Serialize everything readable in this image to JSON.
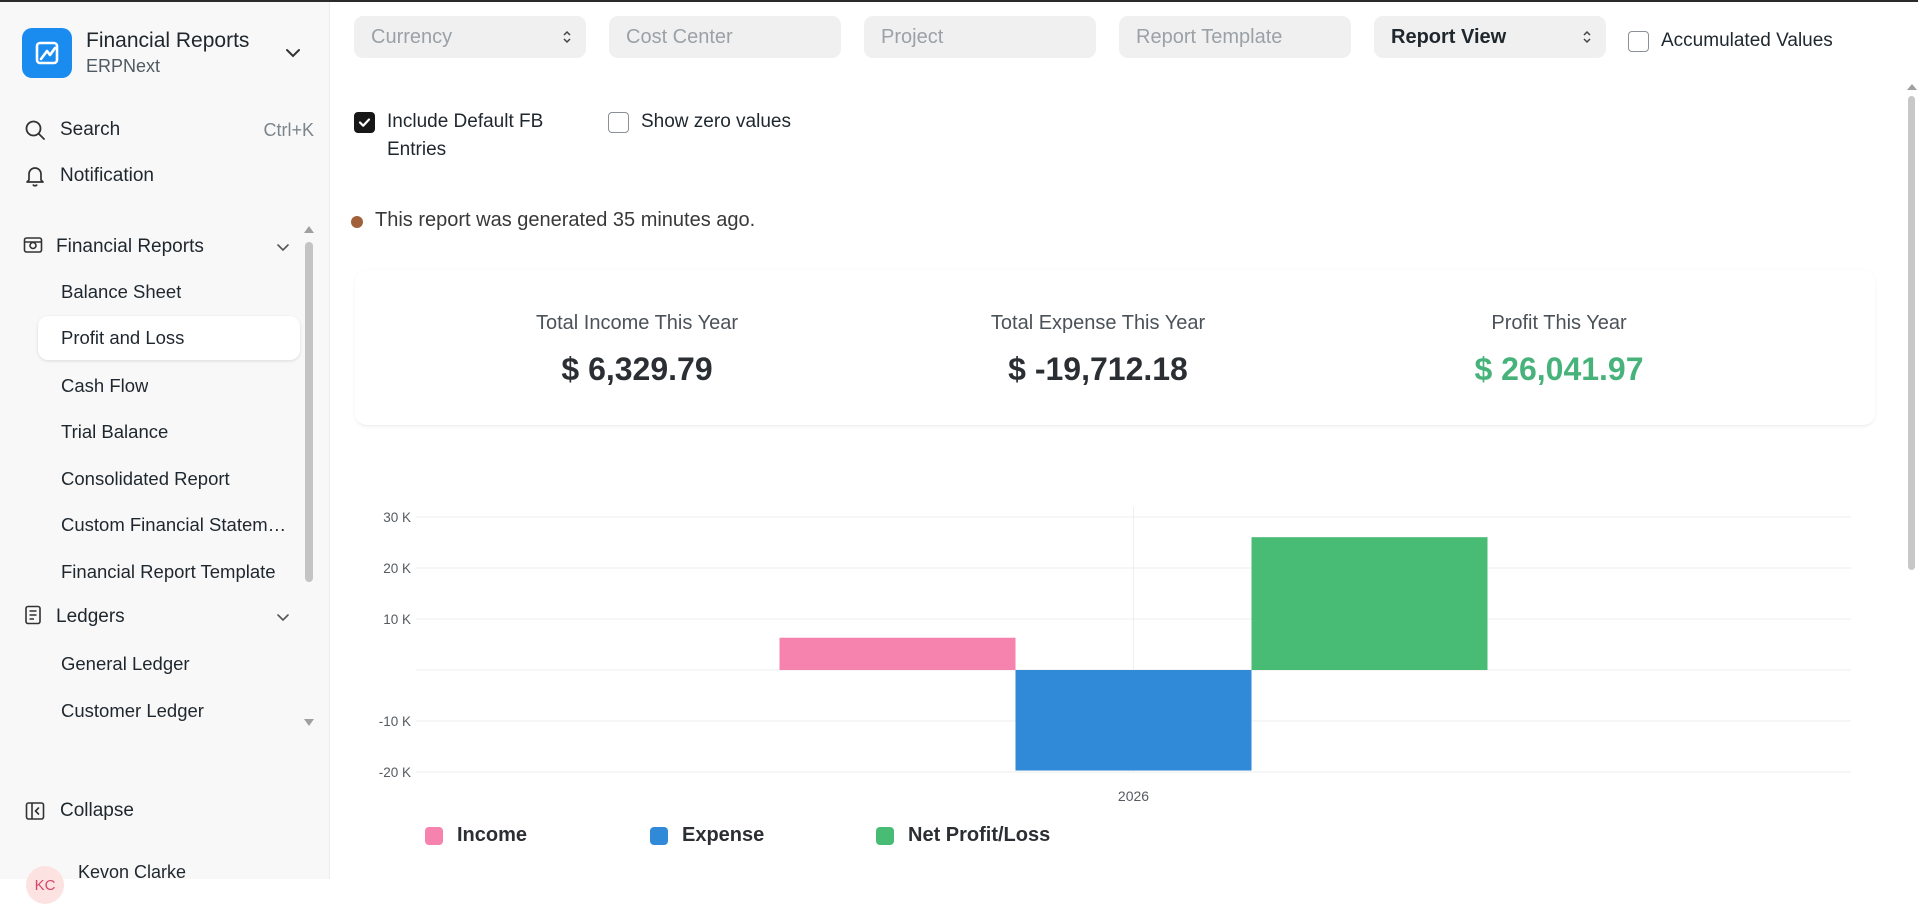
{
  "app": {
    "title": "Financial Reports",
    "subtitle": "ERPNext"
  },
  "sidebar": {
    "search_label": "Search",
    "search_shortcut": "Ctrl+K",
    "notification_label": "Notification",
    "groups": [
      {
        "label": "Financial Reports",
        "items": [
          "Balance Sheet",
          "Profit and Loss",
          "Cash Flow",
          "Trial Balance",
          "Consolidated Report",
          "Custom Financial Statement",
          "Financial Report Template"
        ]
      },
      {
        "label": "Ledgers",
        "items": [
          "General Ledger",
          "Customer Ledger"
        ]
      }
    ],
    "active_item": "Profit and Loss",
    "collapse_label": "Collapse",
    "user": {
      "name": "Kevon Clarke",
      "initials": "KC"
    }
  },
  "filters": {
    "currency_placeholder": "Currency",
    "cost_center_placeholder": "Cost Center",
    "project_placeholder": "Project",
    "report_template_placeholder": "Report Template",
    "report_view_value": "Report View",
    "accumulated_values_label": "Accumulated Values",
    "accumulated_values_checked": false,
    "include_default_fb_label": "Include Default FB Entries",
    "include_default_fb_checked": true,
    "show_zero_label": "Show zero values",
    "show_zero_checked": false
  },
  "status": {
    "text": "This report was generated 35 minutes ago.",
    "dot_color": "#a0603a"
  },
  "summary": [
    {
      "title": "Total Income This Year",
      "value": "$ 6,329.79"
    },
    {
      "title": "Total Expense This Year",
      "value": "$ -19,712.18"
    },
    {
      "title": "Profit This Year",
      "value": "$ 26,041.97",
      "color": "#47b37a"
    }
  ],
  "chart_data": {
    "type": "bar",
    "categories": [
      "2026"
    ],
    "series": [
      {
        "name": "Income",
        "values": [
          6329.79
        ],
        "color": "#f683ae"
      },
      {
        "name": "Expense",
        "values": [
          -19712.18
        ],
        "color": "#318ad8"
      },
      {
        "name": "Net Profit/Loss",
        "values": [
          26041.97
        ],
        "color": "#48bb74"
      }
    ],
    "y_ticks": [
      "30 K",
      "20 K",
      "10 K",
      "-10 K",
      "-20 K"
    ],
    "ylim": [
      -20000,
      30000
    ],
    "grid": true,
    "legend_position": "bottom-left"
  }
}
